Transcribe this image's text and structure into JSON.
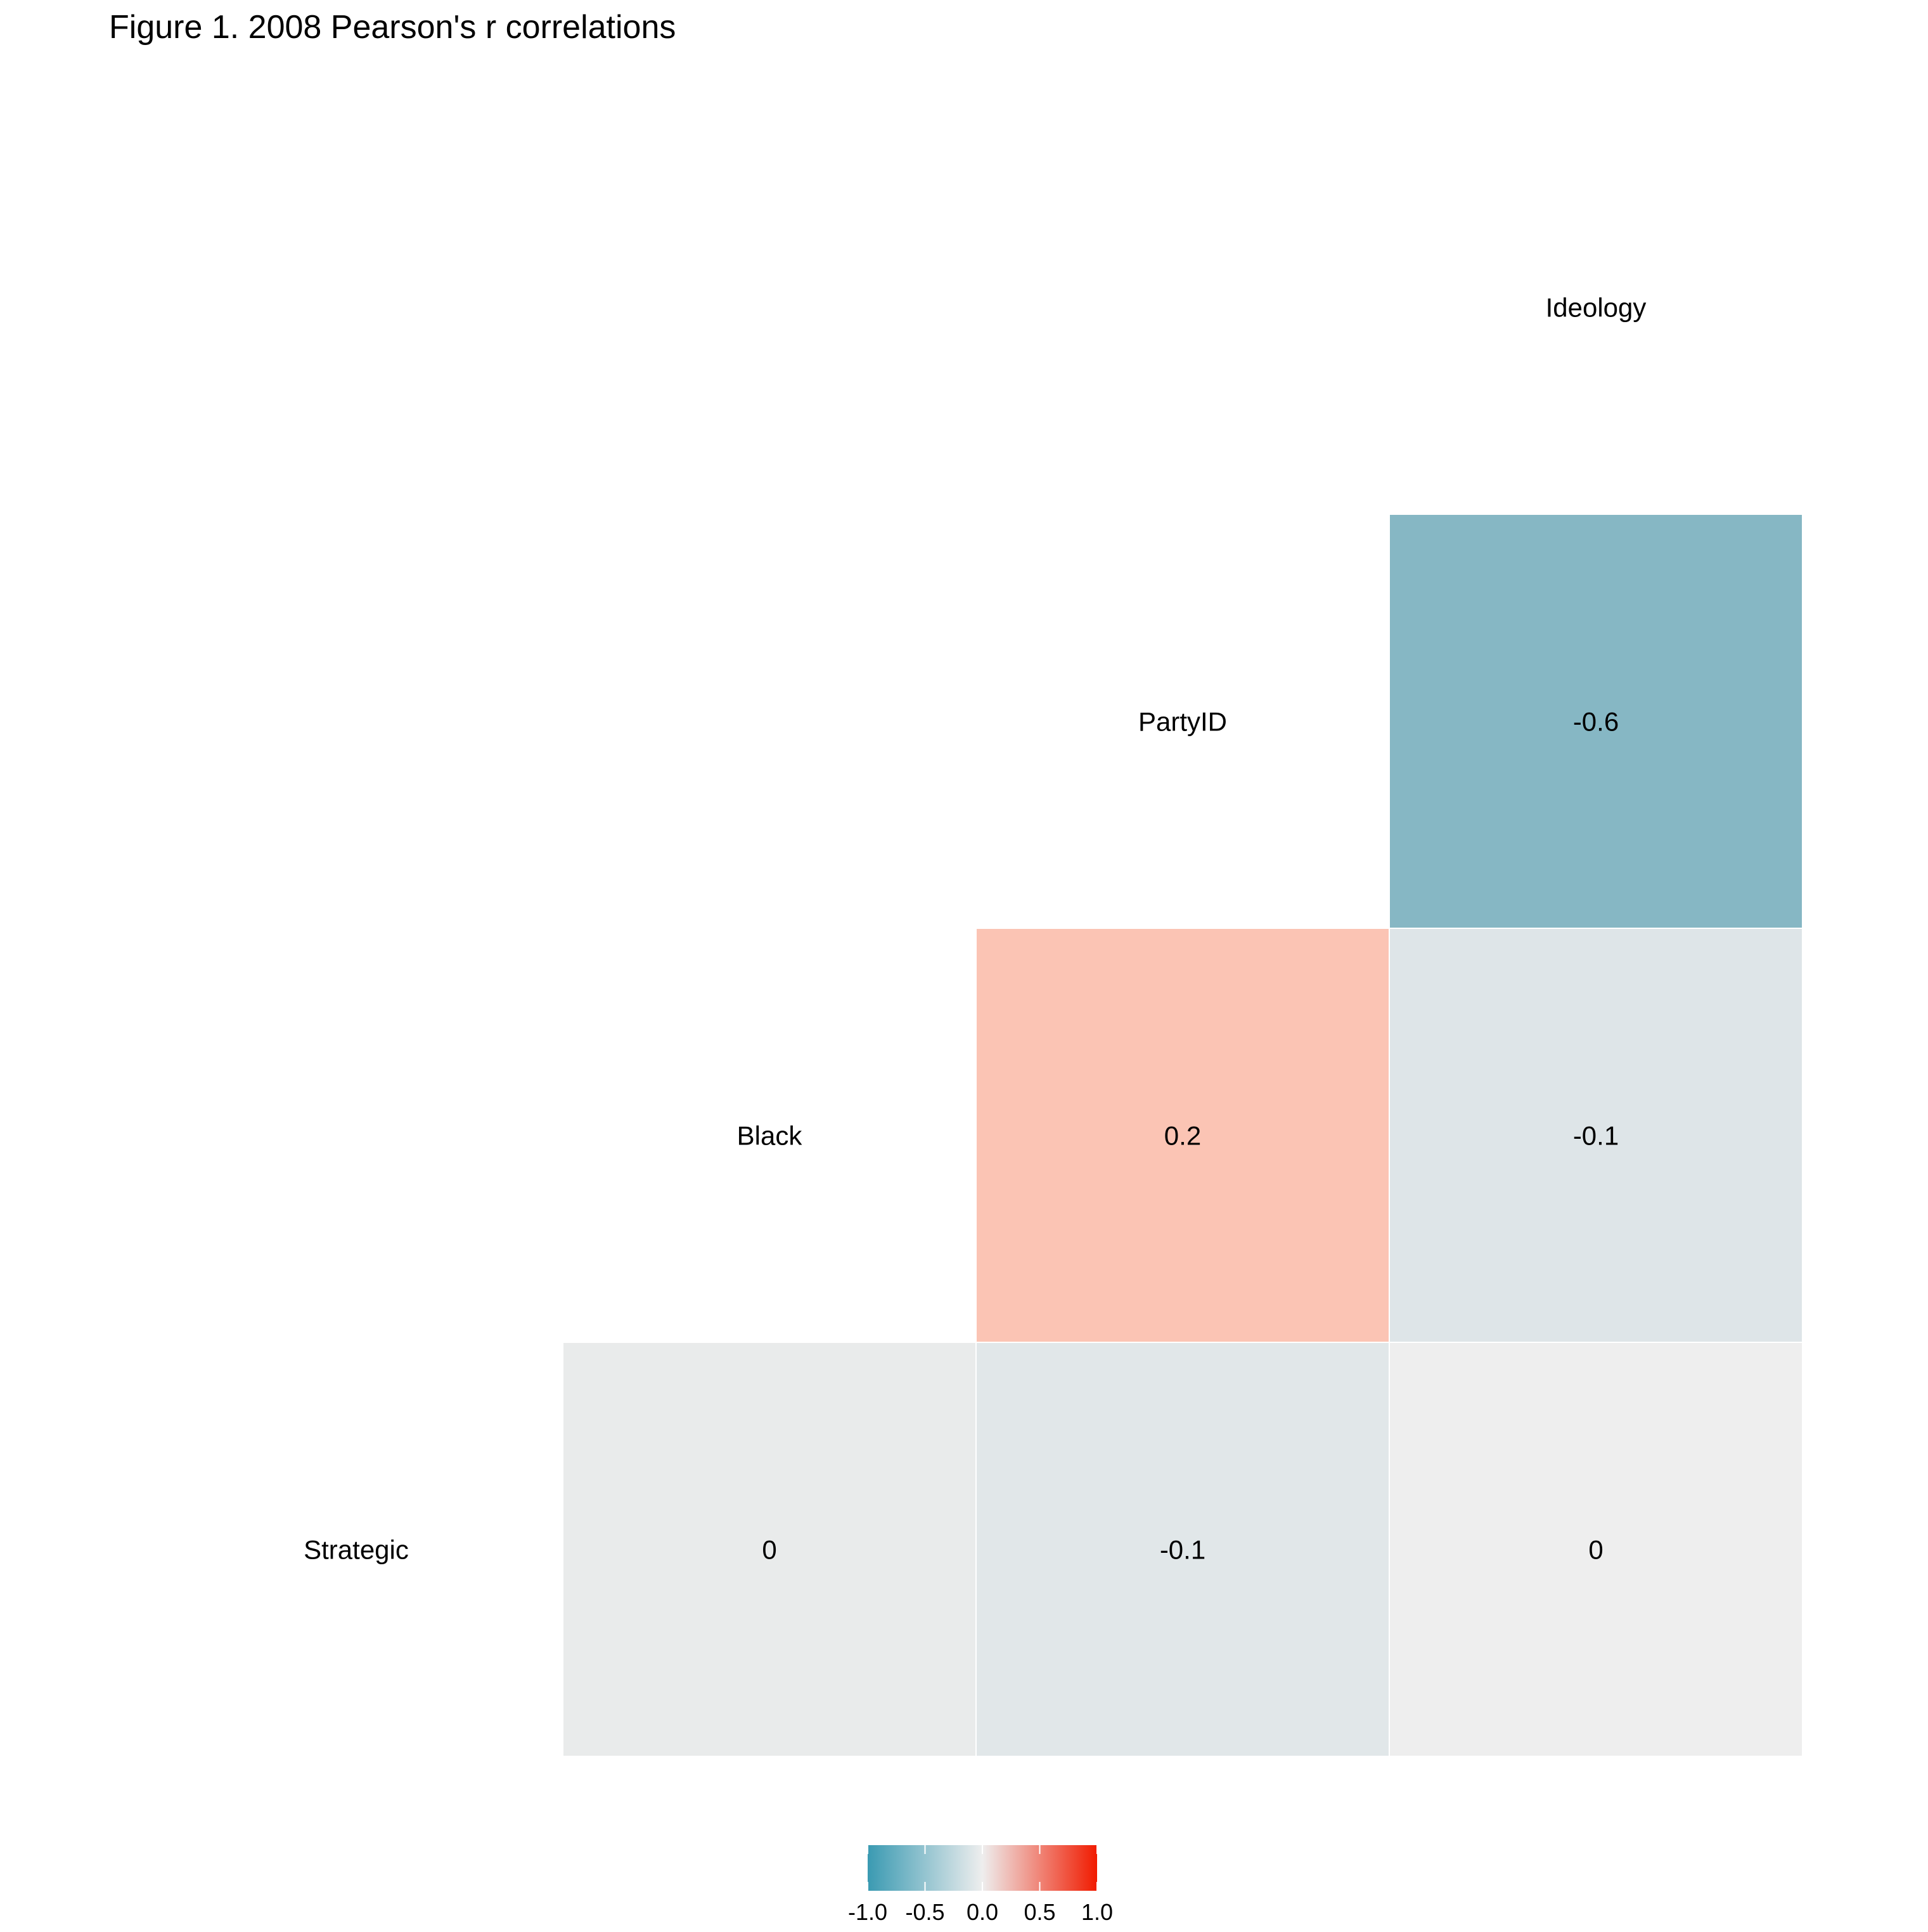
{
  "chart_data": {
    "type": "heatmap",
    "title": "Figure 1. 2008 Pearson's r correlations",
    "variables": [
      "Strategic",
      "Black",
      "PartyID",
      "Ideology"
    ],
    "cells": [
      {
        "row": "Strategic",
        "col": "Black",
        "value": 0,
        "label": "0",
        "color": "#E9EBEB"
      },
      {
        "row": "Strategic",
        "col": "PartyID",
        "value": -0.1,
        "label": "-0.1",
        "color": "#E1E7E9"
      },
      {
        "row": "Strategic",
        "col": "Ideology",
        "value": 0,
        "label": "0",
        "color": "#EEEEEE"
      },
      {
        "row": "Black",
        "col": "PartyID",
        "value": 0.2,
        "label": "0.2",
        "color": "#FBC4B4"
      },
      {
        "row": "Black",
        "col": "Ideology",
        "value": -0.1,
        "label": "-0.1",
        "color": "#DEE5E8"
      },
      {
        "row": "PartyID",
        "col": "Ideology",
        "value": -0.6,
        "label": "-0.6",
        "color": "#86B7C4"
      }
    ],
    "legend": {
      "position": "bottom",
      "ticks": [
        "-1.0",
        "-0.5",
        "0.0",
        "0.5",
        "1.0"
      ],
      "tick_values": [
        -1.0,
        -0.5,
        0.0,
        0.5,
        1.0
      ],
      "limits": [
        -1,
        1
      ],
      "colors": {
        "low": "#3A9AB2",
        "mid": "#EEEEEE",
        "high": "#F11B00"
      }
    }
  }
}
